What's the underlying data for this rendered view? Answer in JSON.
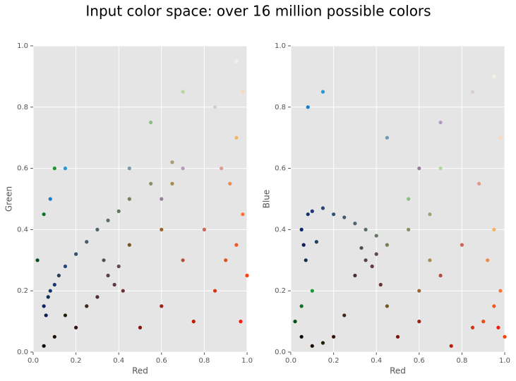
{
  "title": "Input color space: over 16 million possible colors",
  "chart_data": [
    {
      "type": "scatter",
      "xlabel": "Red",
      "ylabel": "Green",
      "xlim": [
        0,
        1
      ],
      "ylim": [
        0,
        1
      ],
      "grid": true,
      "xticks": [
        {
          "value": 0,
          "label": "0.0"
        },
        {
          "value": 0.2,
          "label": "0.2"
        },
        {
          "value": 0.4,
          "label": "0.4"
        },
        {
          "value": 0.6,
          "label": "0.6"
        },
        {
          "value": 0.8,
          "label": "0.8"
        },
        {
          "value": 1,
          "label": "1.0"
        }
      ],
      "yticks": [
        {
          "value": 0,
          "label": "0.0"
        },
        {
          "value": 0.2,
          "label": "0.2"
        },
        {
          "value": 0.4,
          "label": "0.4"
        },
        {
          "value": 0.6,
          "label": "0.6"
        },
        {
          "value": 0.8,
          "label": "0.8"
        },
        {
          "value": 1,
          "label": "1.0"
        }
      ],
      "x": [
        0.05,
        0.08,
        0.1,
        0.06,
        0.07,
        0.15,
        0.2,
        0.25,
        0.3,
        0.35,
        0.4,
        0.45,
        0.55,
        0.65,
        0.35,
        0.38,
        0.4,
        0.3,
        0.42,
        0.33,
        0.9,
        0.95,
        0.85,
        0.98,
        0.92,
        0.8,
        0.7,
        0.6,
        0.5,
        0.75,
        0.95,
        0.98,
        0.95,
        0.85,
        0.7,
        0.6,
        0.1,
        0.05,
        0.2,
        0.15,
        0.02,
        0.05,
        0.1,
        0.08,
        0.15,
        0.45,
        0.55,
        0.7,
        0.25,
        0.45,
        0.6,
        0.88,
        1.0,
        0.97,
        0.65,
        0.12
      ],
      "values": [
        0.15,
        0.2,
        0.22,
        0.12,
        0.18,
        0.28,
        0.32,
        0.36,
        0.4,
        0.43,
        0.46,
        0.5,
        0.55,
        0.62,
        0.25,
        0.22,
        0.28,
        0.18,
        0.2,
        0.3,
        0.3,
        0.35,
        0.2,
        0.45,
        0.55,
        0.4,
        0.3,
        0.15,
        0.08,
        0.1,
        0.7,
        0.85,
        0.95,
        0.8,
        0.6,
        0.5,
        0.05,
        0.02,
        0.08,
        0.12,
        0.3,
        0.45,
        0.6,
        0.5,
        0.6,
        0.6,
        0.75,
        0.85,
        0.15,
        0.35,
        0.4,
        0.6,
        0.25,
        0.1,
        0.55,
        0.25
      ],
      "colors": [
        "#0d2666",
        "#143373",
        "#1a3875",
        "#0f1f59",
        "#122e4d",
        "#264778",
        "#335273",
        "#405c70",
        "#4d666b",
        "#596e66",
        "#667561",
        "#738059",
        "#8c8c66",
        "#a69e73",
        "#59404d",
        "#613847",
        "#664752",
        "#4d2e40",
        "#6b3338",
        "#544d57",
        "#e64d1a",
        "#f25926",
        "#d93314",
        "#fa7333",
        "#eb8c4d",
        "#cc6659",
        "#b34d40",
        "#99261a",
        "#80140d",
        "#bf1a05",
        "#f2b366",
        "#fad9b3",
        "#f2f2e6",
        "#d9ccd9",
        "#b399bf",
        "#998099",
        "#1a0d05",
        "#0d050d",
        "#33140d",
        "#261f08",
        "#054d1a",
        "#0d7326",
        "#1a9933",
        "#1480cc",
        "#2699d9",
        "#7399b3",
        "#8cbf80",
        "#b3d999",
        "#40261f",
        "#735926",
        "#996633",
        "#e0998c",
        "#ff400d",
        "#f71a14",
        "#a68c4d",
        "#1f405c"
      ]
    },
    {
      "type": "scatter",
      "xlabel": "Red",
      "ylabel": "Blue",
      "xlim": [
        0,
        1
      ],
      "ylim": [
        0,
        1
      ],
      "grid": true,
      "xticks": [
        {
          "value": 0,
          "label": "0.0"
        },
        {
          "value": 0.2,
          "label": "0.2"
        },
        {
          "value": 0.4,
          "label": "0.4"
        },
        {
          "value": 0.6,
          "label": "0.6"
        },
        {
          "value": 0.8,
          "label": "0.8"
        },
        {
          "value": 1,
          "label": "1.0"
        }
      ],
      "yticks": [
        {
          "value": 0,
          "label": "0.0"
        },
        {
          "value": 0.2,
          "label": "0.2"
        },
        {
          "value": 0.4,
          "label": "0.4"
        },
        {
          "value": 0.6,
          "label": "0.6"
        },
        {
          "value": 0.8,
          "label": "0.8"
        },
        {
          "value": 1,
          "label": "1.0"
        }
      ],
      "x": [
        0.05,
        0.08,
        0.1,
        0.06,
        0.07,
        0.15,
        0.2,
        0.25,
        0.3,
        0.35,
        0.4,
        0.45,
        0.55,
        0.65,
        0.35,
        0.38,
        0.4,
        0.3,
        0.42,
        0.33,
        0.9,
        0.95,
        0.85,
        0.98,
        0.92,
        0.8,
        0.7,
        0.6,
        0.5,
        0.75,
        0.95,
        0.98,
        0.95,
        0.85,
        0.7,
        0.6,
        0.1,
        0.05,
        0.2,
        0.15,
        0.02,
        0.05,
        0.1,
        0.08,
        0.15,
        0.45,
        0.55,
        0.7,
        0.25,
        0.45,
        0.6,
        0.88,
        1.0,
        0.97,
        0.65,
        0.12
      ],
      "values": [
        0.4,
        0.45,
        0.46,
        0.35,
        0.3,
        0.47,
        0.45,
        0.44,
        0.42,
        0.4,
        0.38,
        0.35,
        0.4,
        0.45,
        0.3,
        0.28,
        0.32,
        0.25,
        0.22,
        0.34,
        0.1,
        0.15,
        0.08,
        0.2,
        0.3,
        0.35,
        0.25,
        0.1,
        0.05,
        0.02,
        0.4,
        0.7,
        0.9,
        0.85,
        0.75,
        0.6,
        0.02,
        0.05,
        0.05,
        0.03,
        0.1,
        0.15,
        0.2,
        0.8,
        0.85,
        0.7,
        0.5,
        0.6,
        0.12,
        0.15,
        0.2,
        0.55,
        0.05,
        0.08,
        0.3,
        0.36
      ],
      "colors": [
        "#0d2666",
        "#143373",
        "#1a3875",
        "#0f1f59",
        "#122e4d",
        "#264778",
        "#335273",
        "#405c70",
        "#4d666b",
        "#596e66",
        "#667561",
        "#738059",
        "#8c8c66",
        "#a69e73",
        "#59404d",
        "#613847",
        "#664752",
        "#4d2e40",
        "#6b3338",
        "#544d57",
        "#e64d1a",
        "#f25926",
        "#d93314",
        "#fa7333",
        "#eb8c4d",
        "#cc6659",
        "#b34d40",
        "#99261a",
        "#80140d",
        "#bf1a05",
        "#f2b366",
        "#fad9b3",
        "#f2f2e6",
        "#d9ccd9",
        "#b399bf",
        "#998099",
        "#1a0d05",
        "#0d050d",
        "#33140d",
        "#261f08",
        "#054d1a",
        "#0d7326",
        "#1a9933",
        "#1480cc",
        "#2699d9",
        "#7399b3",
        "#8cbf80",
        "#b3d999",
        "#40261f",
        "#735926",
        "#996633",
        "#e0998c",
        "#ff400d",
        "#f71a14",
        "#a68c4d",
        "#1f405c"
      ]
    }
  ]
}
